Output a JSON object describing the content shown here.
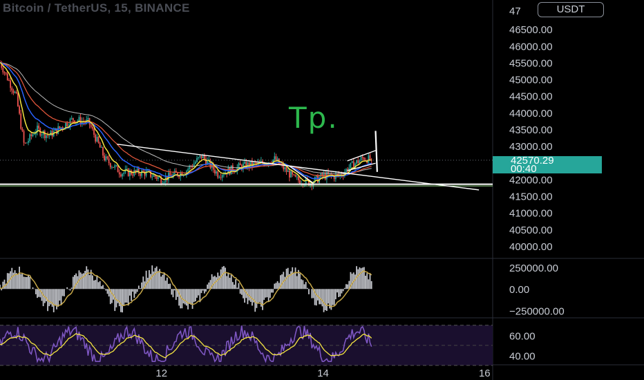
{
  "header": {
    "title": "Bitcoin / TetherUS, 15, BINANCE",
    "currency_button": "USDT"
  },
  "annotation": {
    "text": "Tp."
  },
  "price_tag": {
    "price": "42570.29",
    "countdown": "00:40",
    "color": "#26a69a"
  },
  "colors": {
    "background": "#000000",
    "up": "#26a69a",
    "down": "#ef5350",
    "ma_yellow": "#f5e642",
    "ma_blue": "#2962ff",
    "ma_red": "#e0553a",
    "ma_white": "#bdbdbd",
    "rsi": "#7e57c2",
    "rsi_band": "#1a0f2e",
    "lines": "#ffffff"
  },
  "chart_data": [
    {
      "type": "candlestick",
      "title": "Bitcoin / TetherUS, 15, BINANCE",
      "ylim": [
        39700,
        47000
      ],
      "y_ticks": [
        "46500.00",
        "46000.00",
        "45500.00",
        "45000.00",
        "44500.00",
        "44000.00",
        "43500.00",
        "43000.00",
        "42500.00",
        "42000.00",
        "41500.00",
        "41000.00",
        "40500.00",
        "40000.00"
      ],
      "y_tick_values": [
        46500,
        46000,
        45500,
        45000,
        44500,
        44000,
        43500,
        43000,
        42500,
        42000,
        41500,
        41000,
        40500,
        40000
      ],
      "y_tick_partial": "47",
      "x_ticks": [
        "12",
        "14",
        "16"
      ],
      "x_tick_days": [
        12,
        14,
        16
      ],
      "xlim_days": [
        10.0,
        16.1
      ],
      "last_day": 14.6,
      "anchors": [
        [
          10.0,
          45500
        ],
        [
          10.2,
          44500
        ],
        [
          10.3,
          43000
        ],
        [
          10.45,
          43500
        ],
        [
          10.6,
          43300
        ],
        [
          10.9,
          43800
        ],
        [
          11.1,
          43700
        ],
        [
          11.3,
          42600
        ],
        [
          11.5,
          42200
        ],
        [
          11.8,
          42200
        ],
        [
          12.0,
          42000
        ],
        [
          12.3,
          42250
        ],
        [
          12.5,
          42700
        ],
        [
          12.7,
          42150
        ],
        [
          13.0,
          42400
        ],
        [
          13.2,
          42450
        ],
        [
          13.4,
          42600
        ],
        [
          13.65,
          42000
        ],
        [
          13.85,
          41900
        ],
        [
          14.0,
          42100
        ],
        [
          14.2,
          42100
        ],
        [
          14.35,
          42400
        ],
        [
          14.5,
          42650
        ],
        [
          14.6,
          42570
        ]
      ],
      "current_price": 42570.29
    },
    {
      "type": "histogram",
      "name": "oscillator",
      "y_ticks": [
        "250000.00",
        "0.00",
        "−250000.00"
      ],
      "y_tick_values": [
        250000,
        0,
        -250000
      ],
      "ylim": [
        -320000,
        340000
      ]
    },
    {
      "type": "line",
      "name": "RSI",
      "y_ticks": [
        "60.00",
        "40.00"
      ],
      "y_tick_values": [
        60,
        40
      ],
      "ylim": [
        32,
        76
      ],
      "band": [
        30,
        70
      ]
    }
  ]
}
